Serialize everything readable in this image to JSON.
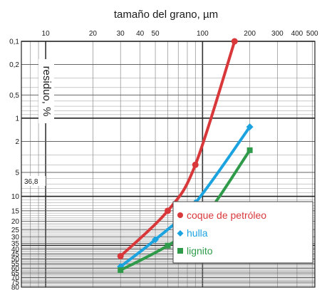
{
  "chart_data": {
    "type": "line",
    "title": "tamaño del grano, µm",
    "xlabel": "tamaño del grano, µm",
    "ylabel": "residuo, %",
    "x_scale": "log",
    "y_scale": "rrsb",
    "xlim": [
      7,
      520
    ],
    "ylim": [
      0.1,
      80
    ],
    "x_ticks_labeled": [
      "10",
      "20",
      "30",
      "40",
      "50",
      "100",
      "200",
      "300",
      "400",
      "500"
    ],
    "y_ticks": [
      "0,1",
      "0,2",
      "0,5",
      "1",
      "2",
      "5",
      "10",
      "15",
      "20",
      "25",
      "30",
      "35",
      "40",
      "45",
      "50",
      "55",
      "60",
      "65",
      "70",
      "75",
      "80"
    ],
    "reference_label": "36,8",
    "legend_position": "bottom-right",
    "series": [
      {
        "name": "coque de petróleo",
        "color": "#d9383b",
        "marker": "circle",
        "x": [
          30,
          60,
          90,
          160
        ],
        "y": [
          47,
          15,
          4,
          0.1
        ]
      },
      {
        "name": "hulla",
        "color": "#1ba3e0",
        "marker": "diamond",
        "x": [
          30,
          50,
          90,
          200
        ],
        "y": [
          58,
          32,
          12,
          1.3
        ]
      },
      {
        "name": "lignito",
        "color": "#2f9b4a",
        "marker": "square",
        "x": [
          30,
          60,
          100,
          200
        ],
        "y": [
          62,
          37,
          19,
          2.6
        ]
      }
    ]
  }
}
